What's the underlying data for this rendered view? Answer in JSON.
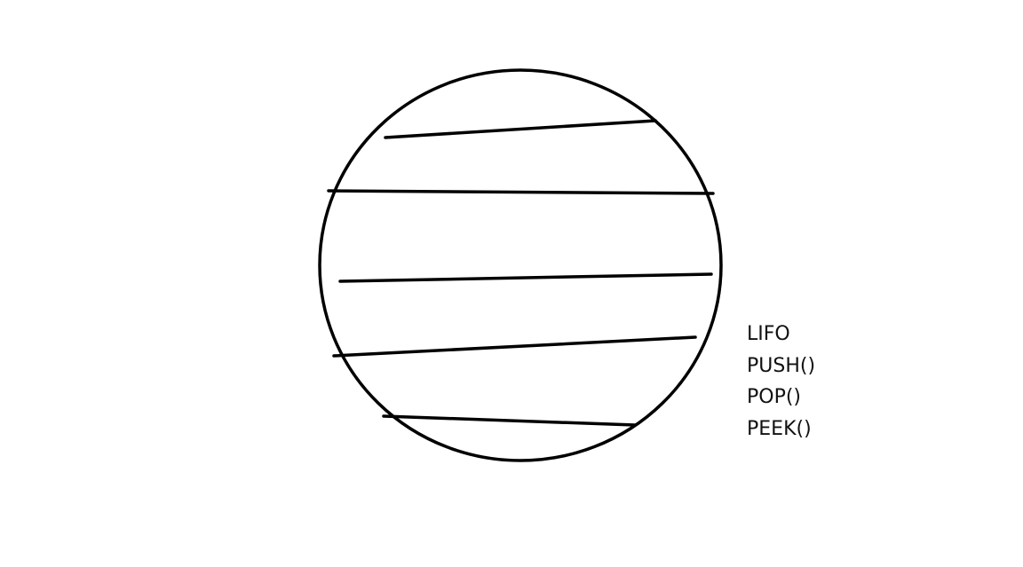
{
  "diagram": {
    "stroke_color": "#000000",
    "background": "#ffffff",
    "labels": [
      "LIFO",
      "PUSH()",
      "POP()",
      "PEEK()"
    ]
  }
}
